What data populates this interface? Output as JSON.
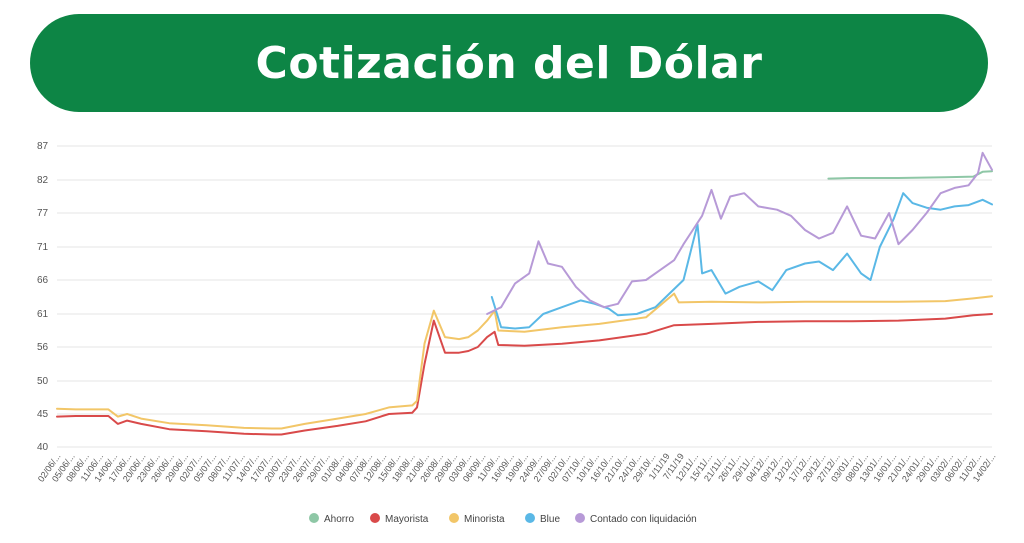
{
  "header": {
    "title": "Cotización del Dólar"
  },
  "chart_data": {
    "type": "line",
    "title": "",
    "xlabel": "",
    "ylabel": "",
    "legend_position": "bottom",
    "y_ticks": [
      "87",
      "82",
      "77",
      "71",
      "66",
      "61",
      "56",
      "50",
      "45",
      "40"
    ],
    "x_labels": [
      "02/06/...",
      "05/06/...",
      "08/06/...",
      "11/06/...",
      "14/06/...",
      "17/06/...",
      "20/06/...",
      "23/06/...",
      "26/06/...",
      "29/06/...",
      "02/07/...",
      "05/07/...",
      "08/07/...",
      "11/07/...",
      "14/07/...",
      "17/07/...",
      "20/07/...",
      "23/07/...",
      "26/07/...",
      "29/07/...",
      "01/08/...",
      "04/08/...",
      "07/08/...",
      "12/08/...",
      "15/08/...",
      "18/08/...",
      "21/08/...",
      "26/08/...",
      "29/08/...",
      "03/09/...",
      "06/09/...",
      "11/09/...",
      "16/09/...",
      "19/09/...",
      "24/09/...",
      "27/09/...",
      "02/10/...",
      "07/10/...",
      "10/10/...",
      "16/10/...",
      "21/10/...",
      "24/10/...",
      "29/10/...",
      "1/11/19",
      "7/11/19",
      "12/11/...",
      "15/11/...",
      "21/11/...",
      "26/11/...",
      "29/11/...",
      "04/12/...",
      "09/12/...",
      "12/12/...",
      "17/12/...",
      "20/12/...",
      "27/12/...",
      "03/01/...",
      "08/01/...",
      "13/01/...",
      "16/01/...",
      "21/01/...",
      "24/01/...",
      "29/01/...",
      "03/02/...",
      "06/02/...",
      "11/02/...",
      "14/02/..."
    ],
    "series": [
      {
        "name": "Ahorro",
        "color": "#8ec7a6",
        "points": [
          [
            0.825,
            82.2
          ],
          [
            0.85,
            82.3
          ],
          [
            0.9,
            82.3
          ],
          [
            0.95,
            82.4
          ],
          [
            0.98,
            82.5
          ],
          [
            0.99,
            83.2
          ],
          [
            1.0,
            83.3
          ]
        ]
      },
      {
        "name": "Mayorista",
        "color": "#d94a4a",
        "points": [
          [
            0,
            44.6
          ],
          [
            0.02,
            44.7
          ],
          [
            0.055,
            44.7
          ],
          [
            0.065,
            43.5
          ],
          [
            0.075,
            44.0
          ],
          [
            0.09,
            43.5
          ],
          [
            0.12,
            42.7
          ],
          [
            0.16,
            42.4
          ],
          [
            0.2,
            42.0
          ],
          [
            0.23,
            41.9
          ],
          [
            0.24,
            41.9
          ],
          [
            0.265,
            42.5
          ],
          [
            0.3,
            43.2
          ],
          [
            0.33,
            43.9
          ],
          [
            0.355,
            45.0
          ],
          [
            0.38,
            45.2
          ],
          [
            0.385,
            46.0
          ],
          [
            0.393,
            53.0
          ],
          [
            0.403,
            60.0
          ],
          [
            0.415,
            55.0
          ],
          [
            0.43,
            55.0
          ],
          [
            0.44,
            55.3
          ],
          [
            0.45,
            56.0
          ],
          [
            0.46,
            57.5
          ],
          [
            0.468,
            58.3
          ],
          [
            0.472,
            56.3
          ],
          [
            0.5,
            56.2
          ],
          [
            0.54,
            56.5
          ],
          [
            0.58,
            57.0
          ],
          [
            0.63,
            58.0
          ],
          [
            0.66,
            59.3
          ],
          [
            0.7,
            59.5
          ],
          [
            0.75,
            59.8
          ],
          [
            0.8,
            59.9
          ],
          [
            0.85,
            59.9
          ],
          [
            0.9,
            60.0
          ],
          [
            0.95,
            60.3
          ],
          [
            0.98,
            60.8
          ],
          [
            1.0,
            61.0
          ]
        ]
      },
      {
        "name": "Minorista",
        "color": "#f2c668",
        "points": [
          [
            0,
            45.8
          ],
          [
            0.02,
            45.7
          ],
          [
            0.055,
            45.7
          ],
          [
            0.065,
            44.6
          ],
          [
            0.075,
            45.0
          ],
          [
            0.09,
            44.3
          ],
          [
            0.12,
            43.6
          ],
          [
            0.16,
            43.3
          ],
          [
            0.2,
            42.9
          ],
          [
            0.23,
            42.8
          ],
          [
            0.24,
            42.8
          ],
          [
            0.265,
            43.5
          ],
          [
            0.3,
            44.3
          ],
          [
            0.33,
            45.0
          ],
          [
            0.355,
            46.0
          ],
          [
            0.38,
            46.3
          ],
          [
            0.385,
            47.0
          ],
          [
            0.393,
            56.5
          ],
          [
            0.403,
            61.5
          ],
          [
            0.415,
            57.5
          ],
          [
            0.43,
            57.2
          ],
          [
            0.44,
            57.5
          ],
          [
            0.45,
            58.5
          ],
          [
            0.46,
            60.0
          ],
          [
            0.468,
            61.5
          ],
          [
            0.472,
            58.5
          ],
          [
            0.5,
            58.3
          ],
          [
            0.54,
            59.0
          ],
          [
            0.58,
            59.5
          ],
          [
            0.63,
            60.5
          ],
          [
            0.66,
            64.0
          ],
          [
            0.665,
            62.7
          ],
          [
            0.7,
            62.8
          ],
          [
            0.75,
            62.7
          ],
          [
            0.8,
            62.8
          ],
          [
            0.85,
            62.8
          ],
          [
            0.9,
            62.8
          ],
          [
            0.95,
            62.9
          ],
          [
            0.98,
            63.3
          ],
          [
            1.0,
            63.6
          ]
        ]
      },
      {
        "name": "Blue",
        "color": "#5ab8e6",
        "points": [
          [
            0.465,
            63.5
          ],
          [
            0.475,
            59.0
          ],
          [
            0.49,
            58.8
          ],
          [
            0.505,
            59.0
          ],
          [
            0.52,
            61.0
          ],
          [
            0.54,
            62.0
          ],
          [
            0.56,
            63.0
          ],
          [
            0.575,
            62.5
          ],
          [
            0.59,
            61.8
          ],
          [
            0.6,
            60.8
          ],
          [
            0.62,
            61.0
          ],
          [
            0.64,
            62.0
          ],
          [
            0.655,
            64.0
          ],
          [
            0.67,
            66.0
          ],
          [
            0.685,
            75.0
          ],
          [
            0.69,
            67.0
          ],
          [
            0.7,
            67.5
          ],
          [
            0.715,
            64.0
          ],
          [
            0.73,
            65.0
          ],
          [
            0.75,
            65.8
          ],
          [
            0.765,
            64.5
          ],
          [
            0.78,
            67.5
          ],
          [
            0.8,
            68.5
          ],
          [
            0.815,
            68.8
          ],
          [
            0.83,
            67.5
          ],
          [
            0.845,
            70.0
          ],
          [
            0.86,
            67.0
          ],
          [
            0.87,
            66.0
          ],
          [
            0.88,
            71.0
          ],
          [
            0.895,
            76.0
          ],
          [
            0.905,
            80.0
          ],
          [
            0.915,
            78.5
          ],
          [
            0.93,
            77.8
          ],
          [
            0.945,
            77.5
          ],
          [
            0.96,
            78.0
          ],
          [
            0.975,
            78.2
          ],
          [
            0.99,
            79.0
          ],
          [
            1.0,
            78.3
          ]
        ]
      },
      {
        "name": "Contado con liquidación",
        "color": "#b79ad7",
        "points": [
          [
            0.46,
            61.0
          ],
          [
            0.475,
            62.0
          ],
          [
            0.49,
            65.5
          ],
          [
            0.505,
            67.0
          ],
          [
            0.515,
            72.0
          ],
          [
            0.525,
            68.5
          ],
          [
            0.54,
            68.0
          ],
          [
            0.555,
            65.0
          ],
          [
            0.57,
            63.0
          ],
          [
            0.585,
            62.0
          ],
          [
            0.6,
            62.5
          ],
          [
            0.615,
            65.8
          ],
          [
            0.63,
            66.0
          ],
          [
            0.645,
            67.5
          ],
          [
            0.66,
            69.0
          ],
          [
            0.67,
            71.5
          ],
          [
            0.68,
            74.0
          ],
          [
            0.69,
            76.5
          ],
          [
            0.7,
            80.5
          ],
          [
            0.71,
            76.0
          ],
          [
            0.72,
            79.5
          ],
          [
            0.735,
            80.0
          ],
          [
            0.75,
            78.0
          ],
          [
            0.77,
            77.5
          ],
          [
            0.785,
            76.5
          ],
          [
            0.8,
            74.0
          ],
          [
            0.815,
            72.5
          ],
          [
            0.83,
            73.5
          ],
          [
            0.845,
            78.0
          ],
          [
            0.86,
            73.0
          ],
          [
            0.875,
            72.5
          ],
          [
            0.89,
            77.0
          ],
          [
            0.9,
            71.5
          ],
          [
            0.915,
            74.0
          ],
          [
            0.93,
            77.0
          ],
          [
            0.945,
            80.0
          ],
          [
            0.96,
            80.8
          ],
          [
            0.975,
            81.2
          ],
          [
            0.985,
            83.0
          ],
          [
            0.99,
            86.0
          ],
          [
            1.0,
            83.5
          ]
        ]
      }
    ]
  }
}
